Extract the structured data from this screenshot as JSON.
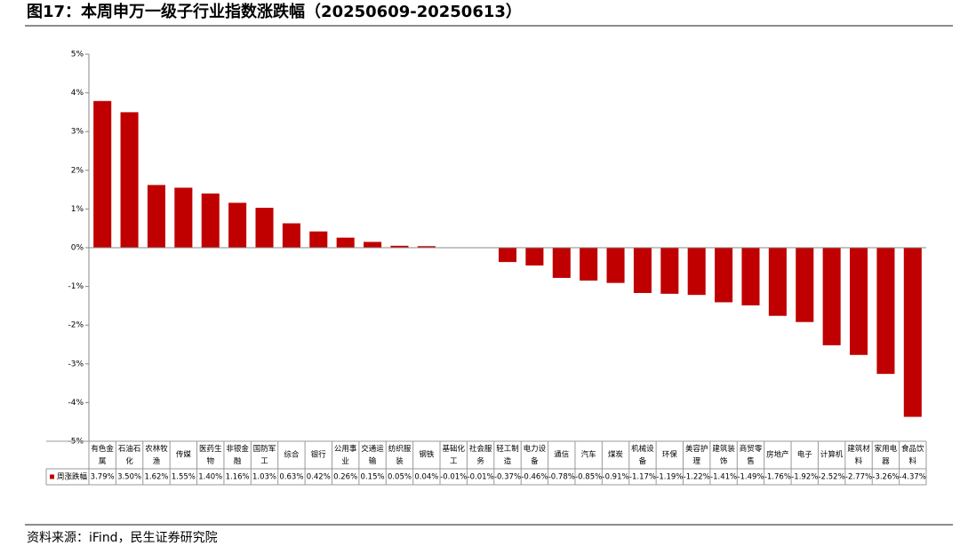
{
  "chart_data": {
    "type": "bar",
    "title": "图17：本周申万一级子行业指数涨跌幅（20250609-20250613）",
    "source": "资料来源：iFind，民生证券研究院",
    "categories": [
      "有色金属",
      "石油石化",
      "农林牧渔",
      "传媒",
      "医药生物",
      "非银金融",
      "国防军工",
      "综合",
      "银行",
      "公用事业",
      "交通运输",
      "纺织服装",
      "钢铁",
      "基础化工",
      "社会服务",
      "轻工制造",
      "电力设备",
      "通信",
      "汽车",
      "煤炭",
      "机械设备",
      "环保",
      "美容护理",
      "建筑装饰",
      "商贸零售",
      "房地产",
      "电子",
      "计算机",
      "建筑材料",
      "家用电器",
      "食品饮料"
    ],
    "series": [
      {
        "name": "周涨跌幅",
        "color": "#c00000",
        "values": [
          3.79,
          3.5,
          1.62,
          1.55,
          1.4,
          1.16,
          1.03,
          0.63,
          0.42,
          0.26,
          0.15,
          0.05,
          0.04,
          -0.01,
          -0.01,
          -0.37,
          -0.46,
          -0.78,
          -0.85,
          -0.91,
          -1.17,
          -1.19,
          -1.22,
          -1.41,
          -1.49,
          -1.76,
          -1.92,
          -2.52,
          -2.77,
          -3.26,
          -4.37
        ],
        "value_labels": [
          "3.79%",
          "3.50%",
          "1.62%",
          "1.55%",
          "1.40%",
          "1.16%",
          "1.03%",
          "0.63%",
          "0.42%",
          "0.26%",
          "0.15%",
          "0.05%",
          "0.04%",
          "-0.01%",
          "-0.01%",
          "-0.37%",
          "-0.46%",
          "-0.78%",
          "-0.85%",
          "-0.91%",
          "-1.17%",
          "-1.19%",
          "-1.22%",
          "-1.41%",
          "-1.49%",
          "-1.76%",
          "-1.92%",
          "-2.52%",
          "-2.77%",
          "-3.26%",
          "-4.37%"
        ]
      }
    ],
    "ylim": [
      -5,
      5
    ],
    "yticks": [
      {
        "value": -5,
        "label": "-5%"
      },
      {
        "value": -4,
        "label": "-4%"
      },
      {
        "value": -3,
        "label": "-3%"
      },
      {
        "value": -2,
        "label": "-2%"
      },
      {
        "value": -1,
        "label": "-1%"
      },
      {
        "value": 0,
        "label": "0%"
      },
      {
        "value": 1,
        "label": "1%"
      },
      {
        "value": 2,
        "label": "2%"
      },
      {
        "value": 3,
        "label": "3%"
      },
      {
        "value": 4,
        "label": "4%"
      },
      {
        "value": 5,
        "label": "5%"
      }
    ],
    "grid": false
  }
}
